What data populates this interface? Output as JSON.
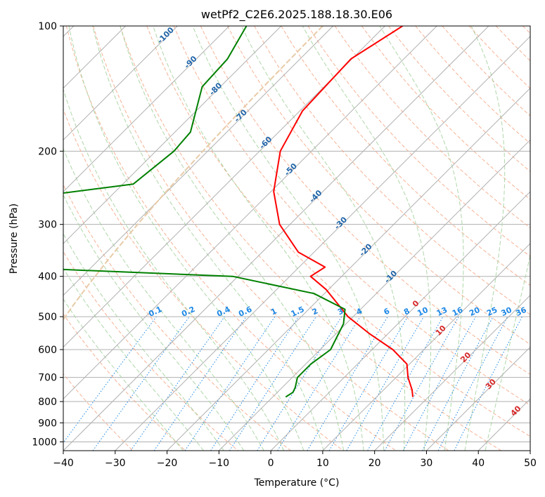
{
  "chart_data": {
    "type": "skew-t",
    "title": "wetPf2_C2E6.2025.188.18.30.E06",
    "xlabel": "Temperature (°C)",
    "ylabel": "Pressure (hPa)",
    "xlim": [
      -40,
      50
    ],
    "ylim": [
      1050,
      100
    ],
    "y_scale": "log",
    "x_ticks": [
      -40,
      -30,
      -20,
      -10,
      0,
      10,
      20,
      30,
      40,
      50
    ],
    "y_ticks": [
      100,
      200,
      300,
      400,
      500,
      600,
      700,
      800,
      900,
      1000
    ],
    "grid": true,
    "series": [
      {
        "role": "temperature",
        "color": "#ff0000",
        "points": [
          [
            -56.6,
            100
          ],
          [
            -60.2,
            120
          ],
          [
            -59.5,
            160
          ],
          [
            -56.0,
            200
          ],
          [
            -49.5,
            250
          ],
          [
            -42.0,
            300
          ],
          [
            -33.0,
            350
          ],
          [
            -25.0,
            380
          ],
          [
            -26.0,
            400
          ],
          [
            -20.5,
            430
          ],
          [
            -11.0,
            500
          ],
          [
            -3.5,
            550
          ],
          [
            4.0,
            600
          ],
          [
            9.5,
            650
          ],
          [
            12.3,
            700
          ],
          [
            15.5,
            750
          ],
          [
            17.0,
            780
          ]
        ]
      },
      {
        "role": "dewpoint",
        "color": "#008000",
        "points": [
          [
            -86.7,
            100
          ],
          [
            -84.0,
            120
          ],
          [
            -83.5,
            140
          ],
          [
            -77.0,
            180
          ],
          [
            -76.5,
            200
          ],
          [
            -78.0,
            240
          ],
          [
            -97.0,
            260
          ],
          [
            -96.5,
            280
          ],
          [
            -96.0,
            300
          ],
          [
            -98.0,
            340
          ],
          [
            -95.0,
            370
          ],
          [
            -75.0,
            385
          ],
          [
            -41.0,
            400
          ],
          [
            -22.0,
            440
          ],
          [
            -13.0,
            480
          ],
          [
            -10.5,
            520
          ],
          [
            -8.0,
            600
          ],
          [
            -9.0,
            650
          ],
          [
            -9.0,
            700
          ],
          [
            -7.5,
            740
          ],
          [
            -7.0,
            760
          ],
          [
            -7.5,
            780
          ]
        ]
      }
    ],
    "isotherm_labels": [
      "-100",
      "-90",
      "-80",
      "-70",
      "-60",
      "-50",
      "-40",
      "-30",
      "-20",
      "-10",
      "0",
      "10",
      "20",
      "30",
      "40"
    ],
    "mixing_ratio_labels": [
      "0.1",
      "0.2",
      "0.4",
      "0.6",
      "1",
      "1.5",
      "2",
      "3",
      "4",
      "6",
      "8",
      "10",
      "13",
      "16",
      "20",
      "25",
      "30",
      "36"
    ],
    "colors": {
      "temperature": "#ff0000",
      "dewpoint": "#008000",
      "isotherms": "#888888",
      "dry_adiabats": "#f4a582",
      "moist_adiabats": "#a6d3a0",
      "mixing_ratio": "#1e88e5",
      "lcl": "#e8cba8",
      "isotherm_label_cold": "#2266aa",
      "isotherm_label_warm": "#d62728"
    }
  }
}
